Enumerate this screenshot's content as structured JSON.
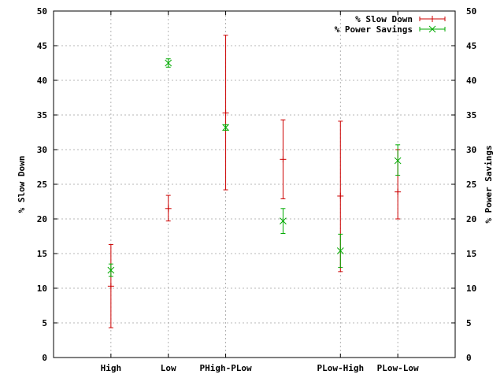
{
  "chart_data": {
    "type": "scatter",
    "error_bars": true,
    "x_tick_labels": [
      {
        "x": 1,
        "label": "High"
      },
      {
        "x": 2,
        "label": "Low"
      },
      {
        "x": 3,
        "label": "PHigh-PLow"
      },
      {
        "x": 5,
        "label": "PLow-High"
      },
      {
        "x": 6,
        "label": "PLow-Low"
      }
    ],
    "xlim": [
      0,
      7
    ],
    "ylim": [
      0,
      50
    ],
    "y2lim": [
      0,
      50
    ],
    "y_ticks": [
      0,
      5,
      10,
      15,
      20,
      25,
      30,
      35,
      40,
      45,
      50
    ],
    "ylabel": "% Slow Down",
    "y2label": "% Power Savings",
    "grid": true,
    "legend_position": "top-right",
    "series": [
      {
        "name": "% Slow Down",
        "color": "#cc0000",
        "marker": "plus",
        "points": [
          {
            "x": 1,
            "y": 10.3,
            "low": 4.3,
            "high": 16.3
          },
          {
            "x": 2,
            "y": 21.5,
            "low": 19.7,
            "high": 23.4
          },
          {
            "x": 3,
            "y": 35.3,
            "low": 24.2,
            "high": 46.5
          },
          {
            "x": 4,
            "y": 28.6,
            "low": 22.9,
            "high": 34.3
          },
          {
            "x": 5,
            "y": 23.3,
            "low": 12.4,
            "high": 34.1
          },
          {
            "x": 6,
            "y": 23.9,
            "low": 20.0,
            "high": 30.0
          }
        ]
      },
      {
        "name": "% Power Savings",
        "color": "#00aa00",
        "marker": "x",
        "points": [
          {
            "x": 1,
            "y": 12.6,
            "low": 11.7,
            "high": 13.5
          },
          {
            "x": 2,
            "y": 42.5,
            "low": 41.9,
            "high": 43.1
          },
          {
            "x": 3,
            "y": 33.2,
            "low": 32.8,
            "high": 33.6
          },
          {
            "x": 4,
            "y": 19.7,
            "low": 17.9,
            "high": 21.5
          },
          {
            "x": 5,
            "y": 15.4,
            "low": 13.0,
            "high": 17.8
          },
          {
            "x": 6,
            "y": 28.4,
            "low": 26.3,
            "high": 30.7
          }
        ]
      }
    ]
  }
}
